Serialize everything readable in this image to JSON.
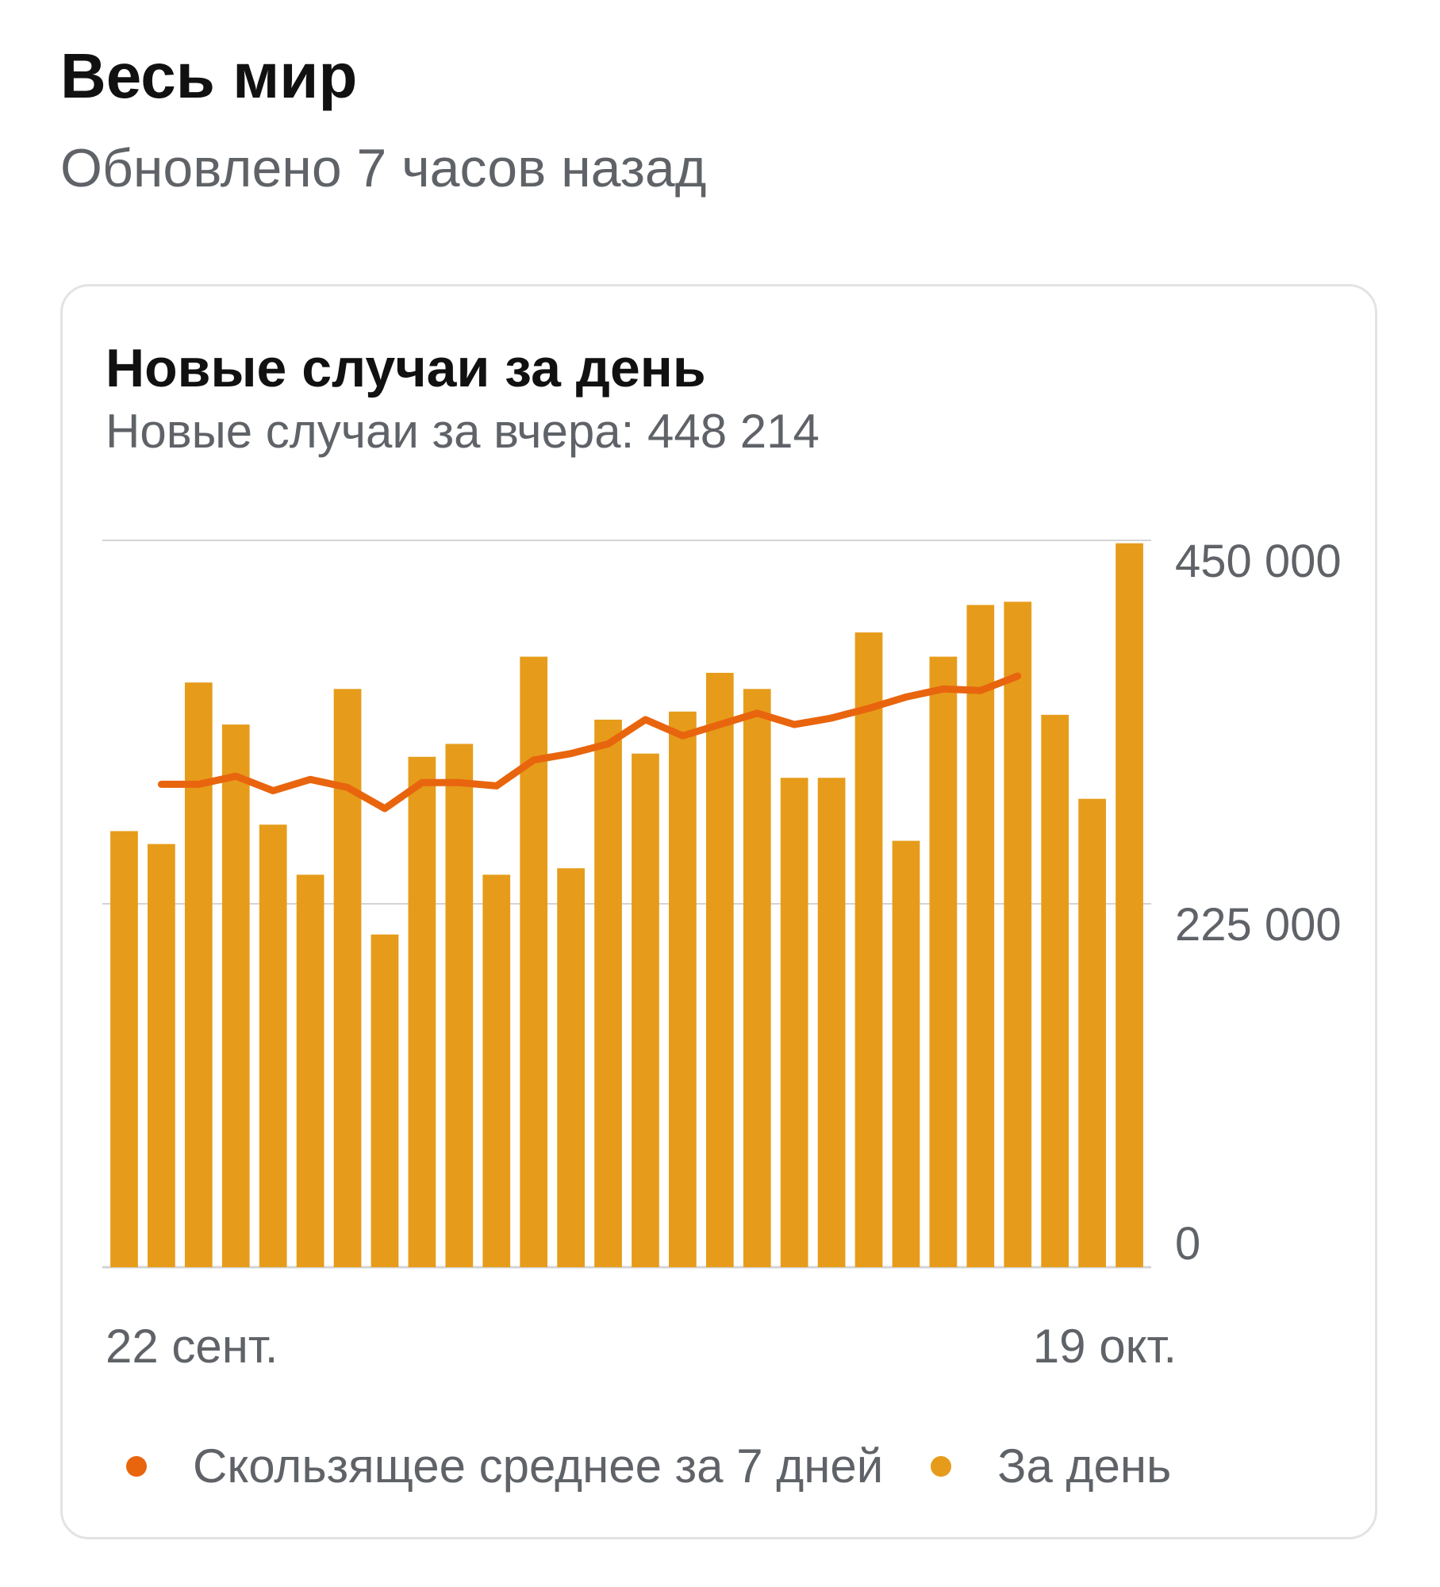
{
  "page": {
    "title": "Весь мир",
    "subtitle": "Обновлено 7 часов назад"
  },
  "card": {
    "title": "Новые случаи за день",
    "subtitle": "Новые случаи за вчера: 448 214"
  },
  "colors": {
    "bar": "#E69C1A",
    "line": "#E8650E",
    "grid": "#d4d4d4",
    "axis_text": "#5f6368"
  },
  "chart_data": {
    "type": "bar",
    "title": "Новые случаи за день",
    "ylim": [
      0,
      450000
    ],
    "y_ticks": [
      {
        "value": 450000,
        "label": "450 000"
      },
      {
        "value": 225000,
        "label": "225 000"
      },
      {
        "value": 0,
        "label": "0"
      }
    ],
    "x_labels": {
      "first": "22 сент.",
      "last": "19 окт."
    },
    "grid": true,
    "legend_position": "bottom",
    "series": [
      {
        "name": "За день",
        "kind": "bar",
        "values": [
          270000,
          262000,
          362000,
          336000,
          274000,
          243000,
          358000,
          206000,
          316000,
          324000,
          243000,
          378000,
          247000,
          339000,
          318000,
          344000,
          368000,
          358000,
          303000,
          303000,
          393000,
          264000,
          378000,
          410000,
          412000,
          342000,
          290000,
          448214
        ]
      },
      {
        "name": "Скользящее среднее за 7 дней",
        "kind": "line",
        "values": [
          null,
          299000,
          299000,
          304000,
          295000,
          302000,
          297000,
          284000,
          300000,
          300000,
          298000,
          314000,
          318000,
          324000,
          339000,
          329000,
          336000,
          343000,
          336000,
          340000,
          346000,
          353000,
          358000,
          357000,
          366000,
          null,
          null,
          null
        ]
      }
    ]
  },
  "legend": [
    {
      "label": "Скользящее среднее за 7 дней",
      "color": "#E8650E"
    },
    {
      "label": "За день",
      "color": "#E69C1A"
    }
  ]
}
